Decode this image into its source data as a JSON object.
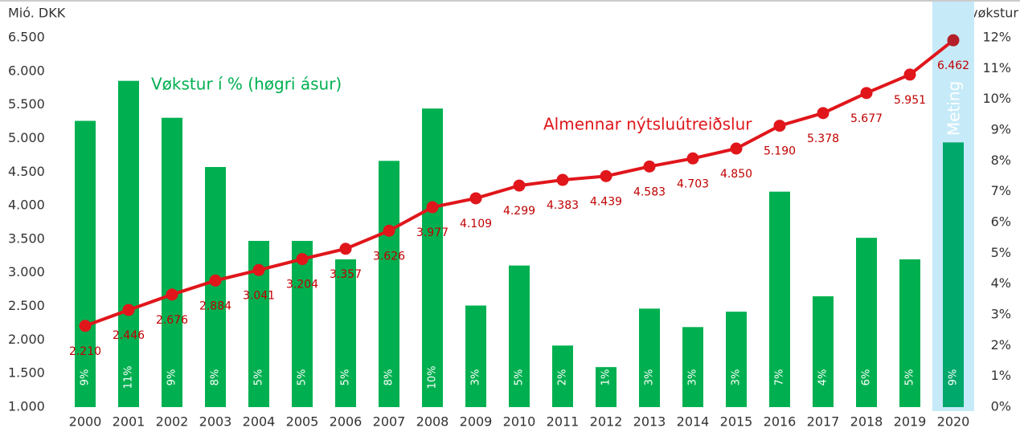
{
  "chart_data": {
    "type": "bar_line",
    "y_label": "Mió. DKK",
    "y2_label": "%-vøkstur",
    "categories": [
      "2000",
      "2001",
      "2002",
      "2003",
      "2004",
      "2005",
      "2006",
      "2007",
      "2008",
      "2009",
      "2010",
      "2011",
      "2012",
      "2013",
      "2014",
      "2015",
      "2016",
      "2017",
      "2018",
      "2019",
      "2020"
    ],
    "series": [
      {
        "name": "Almennar nýtsluútreiðslur",
        "kind": "line",
        "axis": "y",
        "color": "#e0161b",
        "highlight_color": "#b3202a",
        "values": [
          2210,
          2446,
          2676,
          2884,
          3041,
          3204,
          3357,
          3626,
          3977,
          4109,
          4299,
          4383,
          4439,
          4583,
          4703,
          4850,
          5190,
          5378,
          5677,
          5951,
          6462
        ],
        "value_labels": [
          "2.210",
          "2.446",
          "2.676",
          "2.884",
          "3.041",
          "3.204",
          "3.357",
          "3.626",
          "3.977",
          "4.109",
          "4.299",
          "4.383",
          "4.439",
          "4.583",
          "4.703",
          "4.850",
          "5.190",
          "5.378",
          "5.677",
          "5.951",
          "6.462"
        ]
      },
      {
        "name": "Vøkstur í % (høgri ásur)",
        "kind": "bar",
        "axis": "y2",
        "color": "#00b050",
        "highlight_color": "#00a86b",
        "values": [
          9.3,
          10.6,
          9.4,
          7.8,
          5.4,
          5.4,
          4.8,
          8.0,
          9.7,
          3.3,
          4.6,
          2.0,
          1.3,
          3.2,
          2.6,
          3.1,
          7.0,
          3.6,
          5.5,
          4.8,
          8.6
        ],
        "value_labels": [
          "9%",
          "11%",
          "9%",
          "8%",
          "5%",
          "5%",
          "5%",
          "8%",
          "10%",
          "3%",
          "5%",
          "2%",
          "1%",
          "3%",
          "3%",
          "3%",
          "7%",
          "4%",
          "6%",
          "5%",
          "9%"
        ]
      }
    ],
    "highlight": {
      "category": "2020",
      "label": "Meting",
      "color": "#c6eaf8"
    },
    "ylim": [
      1000,
      6500
    ],
    "yticks": [
      {
        "value": 1000,
        "label": "1.000"
      },
      {
        "value": 1500,
        "label": "1.500"
      },
      {
        "value": 2000,
        "label": "2.000"
      },
      {
        "value": 2500,
        "label": "2.500"
      },
      {
        "value": 3000,
        "label": "3.000"
      },
      {
        "value": 3500,
        "label": "3.500"
      },
      {
        "value": 4000,
        "label": "4.000"
      },
      {
        "value": 4500,
        "label": "4.500"
      },
      {
        "value": 5000,
        "label": "5.000"
      },
      {
        "value": 5500,
        "label": "5.500"
      },
      {
        "value": 6000,
        "label": "6.000"
      },
      {
        "value": 6500,
        "label": "6.500"
      }
    ],
    "y2lim": [
      0,
      12
    ],
    "y2ticks": [
      {
        "value": 0,
        "label": "0%"
      },
      {
        "value": 1,
        "label": "1%"
      },
      {
        "value": 2,
        "label": "2%"
      },
      {
        "value": 3,
        "label": "3%"
      },
      {
        "value": 4,
        "label": "4%"
      },
      {
        "value": 5,
        "label": "5%"
      },
      {
        "value": 6,
        "label": "6%"
      },
      {
        "value": 7,
        "label": "7%"
      },
      {
        "value": 8,
        "label": "8%"
      },
      {
        "value": 9,
        "label": "9%"
      },
      {
        "value": 10,
        "label": "10%"
      },
      {
        "value": 11,
        "label": "11%"
      },
      {
        "value": 12,
        "label": "12%"
      }
    ],
    "grid": false
  }
}
